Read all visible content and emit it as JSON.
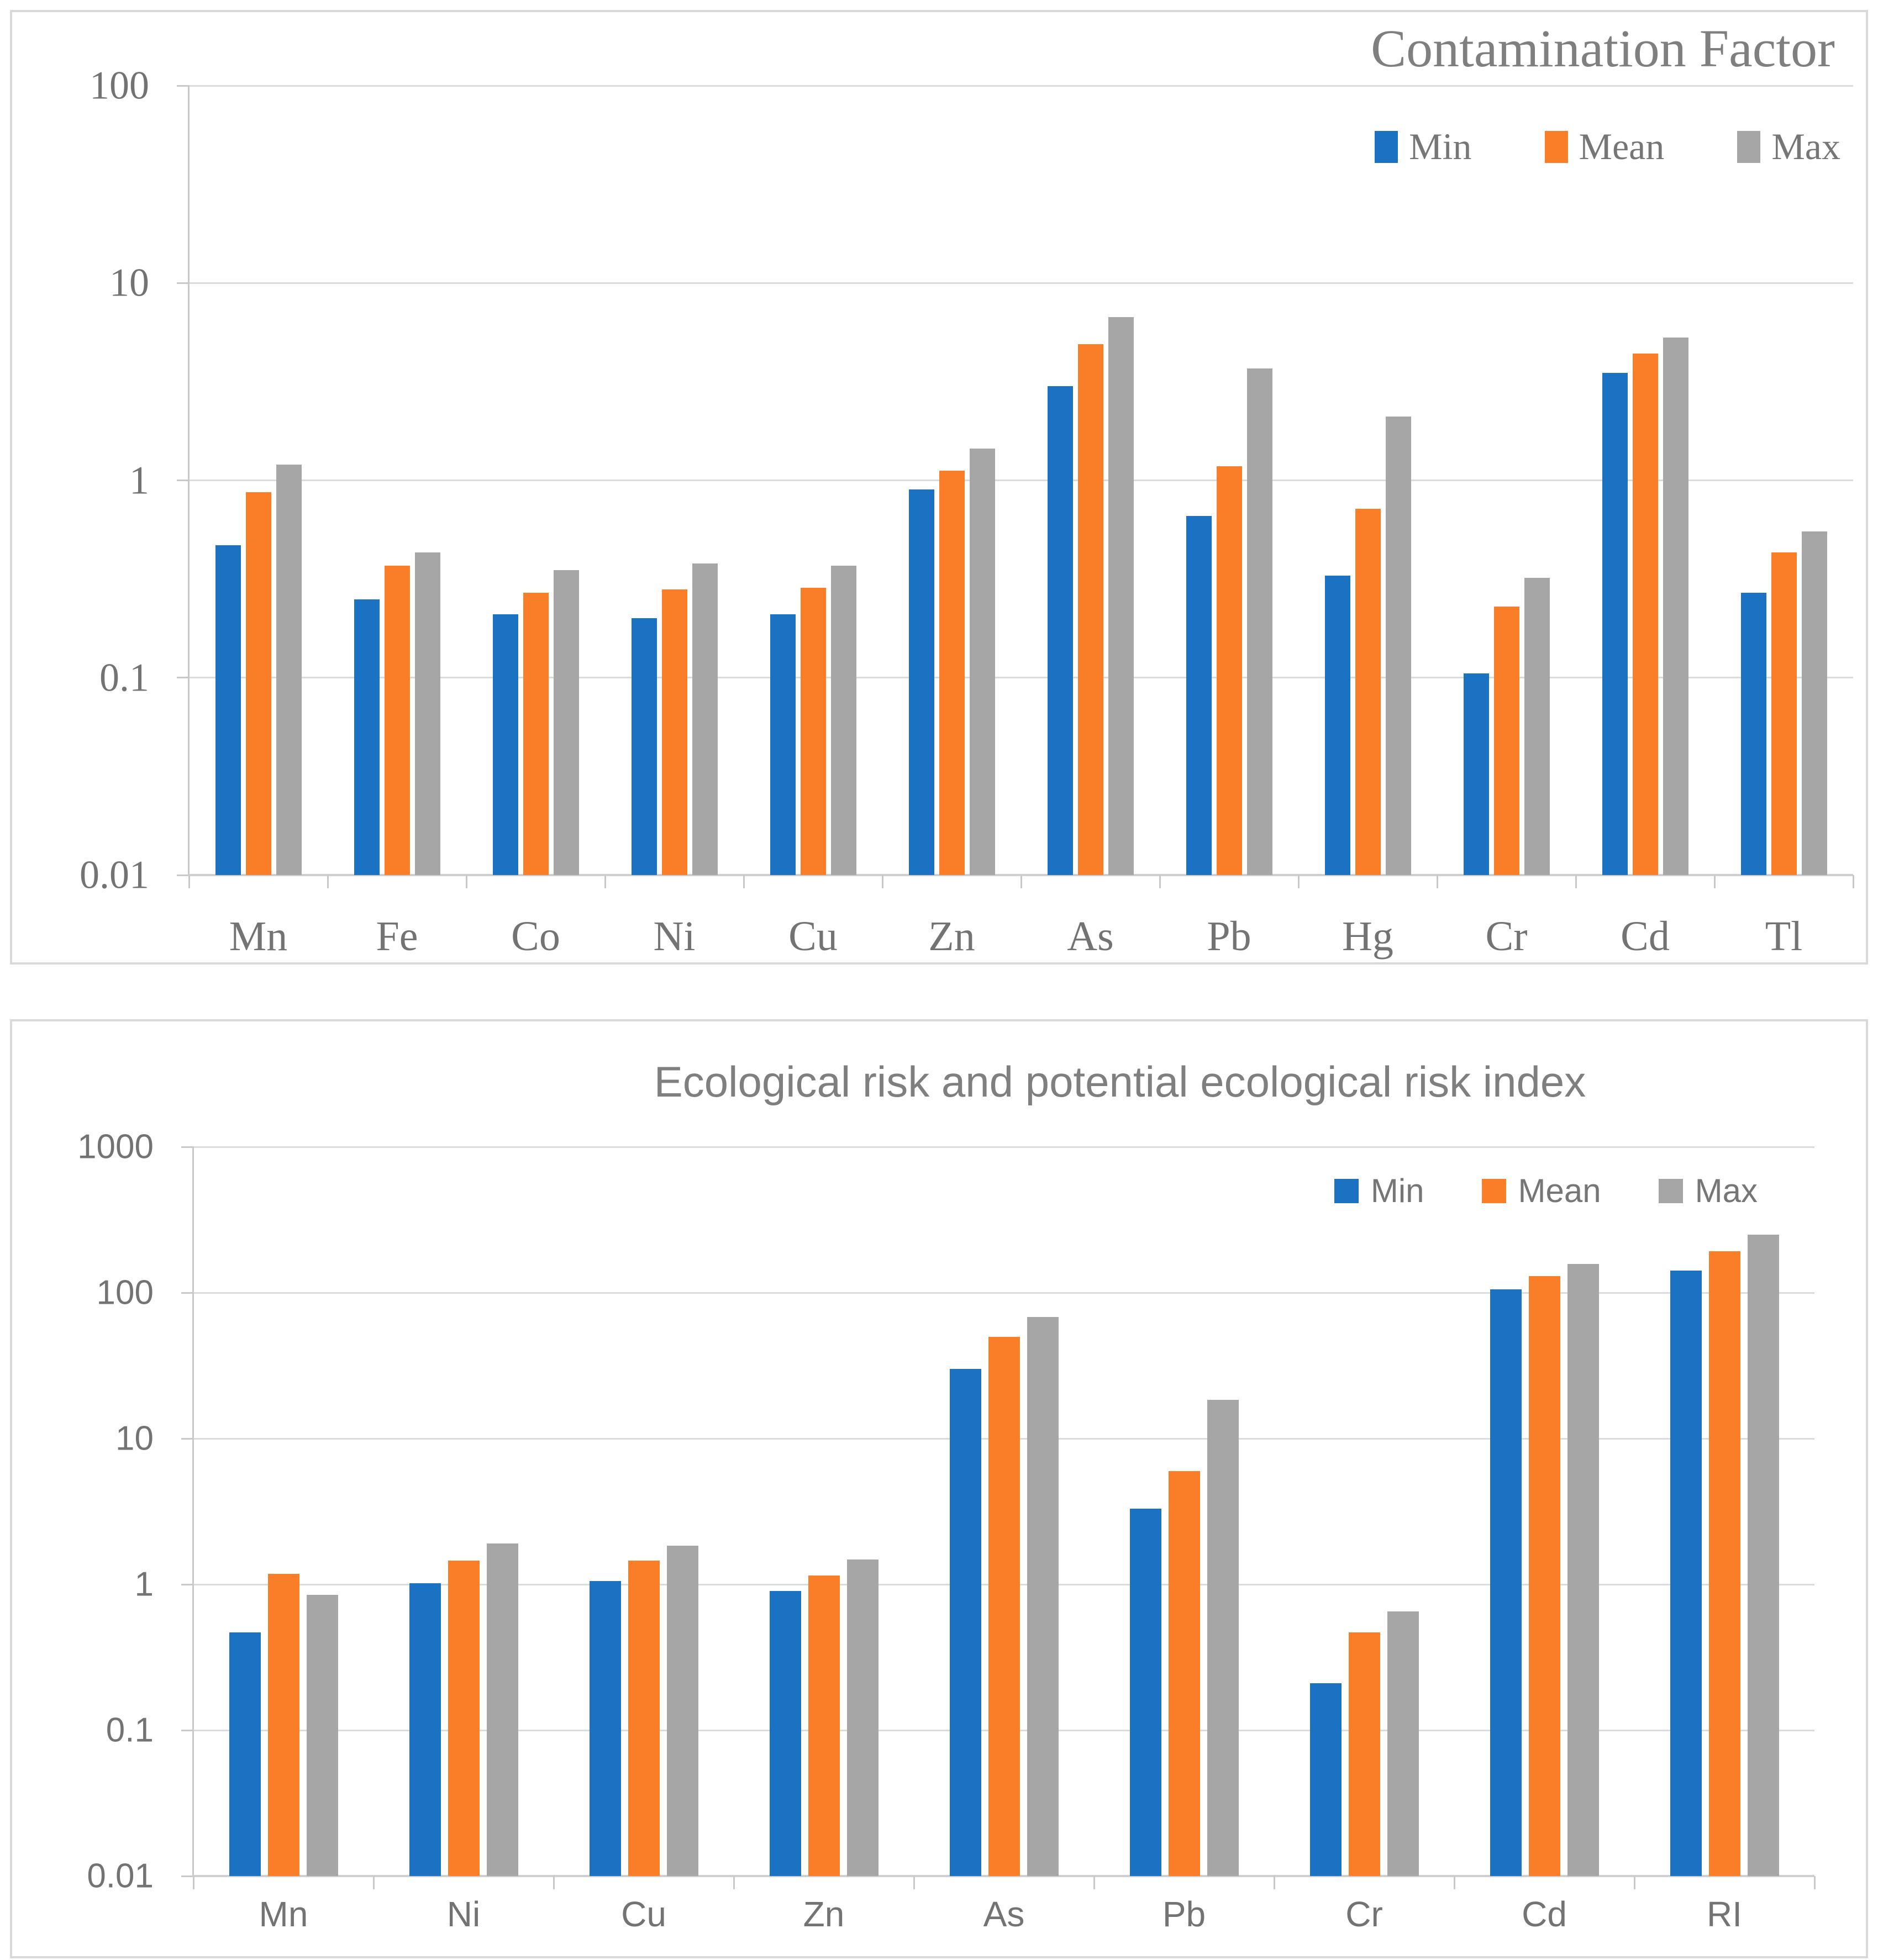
{
  "colors": {
    "min": "#1B72C2",
    "mean": "#F97E27",
    "max": "#A6A6A6",
    "gridline": "#DBDBDB",
    "axis_line": "#C9C9C9",
    "text": "#737373",
    "title_text": "#7F7F7F",
    "panel_border": "#D9D9D9"
  },
  "chart_data": [
    {
      "type": "bar",
      "title": "Contamination Factor",
      "scale": "log",
      "ylim": [
        0.01,
        100
      ],
      "y_ticks": [
        "100",
        "10",
        "1",
        "0.1",
        "0.01"
      ],
      "grid": true,
      "legend_position": "top-right",
      "categories": [
        "Mn",
        "Fe",
        "Co",
        "Ni",
        "Cu",
        "Zn",
        "As",
        "Pb",
        "Hg",
        "Cr",
        "Cd",
        "Tl"
      ],
      "series": [
        {
          "name": "Min",
          "color_key": "min",
          "values": [
            0.47,
            0.25,
            0.21,
            0.2,
            0.21,
            0.9,
            3.0,
            0.66,
            0.33,
            0.105,
            3.5,
            0.27
          ]
        },
        {
          "name": "Mean",
          "color_key": "mean",
          "values": [
            0.87,
            0.37,
            0.27,
            0.28,
            0.285,
            1.12,
            4.9,
            1.18,
            0.72,
            0.23,
            4.4,
            0.43
          ]
        },
        {
          "name": "Max",
          "color_key": "max",
          "values": [
            1.2,
            0.43,
            0.35,
            0.38,
            0.37,
            1.45,
            6.7,
            3.7,
            2.1,
            0.32,
            5.3,
            0.55
          ]
        }
      ]
    },
    {
      "type": "bar",
      "title": "Ecological risk and potential ecological risk index",
      "scale": "log",
      "ylim": [
        0.01,
        1000
      ],
      "y_ticks": [
        "1000",
        "100",
        "10",
        "1",
        "0.1",
        "0.01"
      ],
      "grid": true,
      "legend_position": "top-right",
      "categories": [
        "Mn",
        "Ni",
        "Cu",
        "Zn",
        "As",
        "Pb",
        "Cr",
        "Cd",
        "RI"
      ],
      "series": [
        {
          "name": "Min",
          "color_key": "min",
          "values": [
            0.47,
            1.02,
            1.05,
            0.9,
            30,
            3.3,
            0.21,
            105,
            142
          ]
        },
        {
          "name": "Mean",
          "color_key": "mean",
          "values": [
            1.18,
            1.45,
            1.45,
            1.15,
            50,
            6.0,
            0.47,
            130,
            192
          ]
        },
        {
          "name": "Max",
          "color_key": "max",
          "values": [
            0.85,
            1.9,
            1.85,
            1.48,
            68,
            18.5,
            0.65,
            158,
            250
          ]
        }
      ]
    }
  ]
}
